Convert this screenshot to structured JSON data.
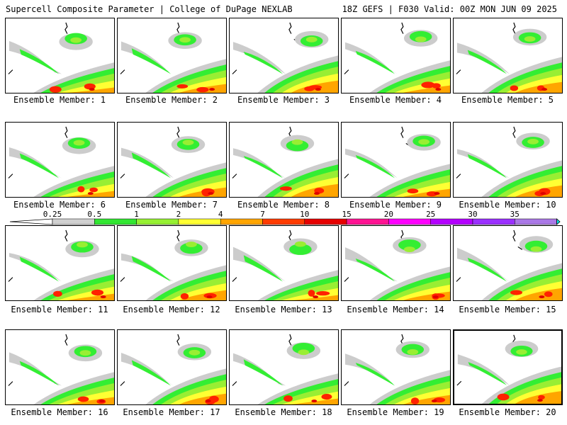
{
  "header": {
    "left_title": "Supercell Composite Parameter | College of DuPage NEXLAB",
    "right_title": "18Z GEFS | F030 Valid: 00Z MON JUN 09 2025"
  },
  "members": [
    {
      "label": "Ensemble Member: 1"
    },
    {
      "label": "Ensemble Member: 2"
    },
    {
      "label": "Ensemble Member: 3"
    },
    {
      "label": "Ensemble Member: 4"
    },
    {
      "label": "Ensemble Member: 5"
    },
    {
      "label": "Ensemble Member: 6"
    },
    {
      "label": "Ensemble Member: 7"
    },
    {
      "label": "Ensemble Member: 8"
    },
    {
      "label": "Ensemble Member: 9"
    },
    {
      "label": "Ensemble Member: 10"
    },
    {
      "label": "Ensemble Member: 11"
    },
    {
      "label": "Ensemble Member: 12"
    },
    {
      "label": "Ensemble Member: 13"
    },
    {
      "label": "Ensemble Member: 14"
    },
    {
      "label": "Ensemble Member: 15"
    },
    {
      "label": "Ensemble Member: 16"
    },
    {
      "label": "Ensemble Member: 17"
    },
    {
      "label": "Ensemble Member: 18"
    },
    {
      "label": "Ensemble Member: 19"
    },
    {
      "label": "Ensemble Member: 20",
      "selected": true
    }
  ],
  "legend": {
    "ticks": [
      "0.25",
      "0.5",
      "1",
      "2",
      "4",
      "7",
      "10",
      "15",
      "20",
      "25",
      "30",
      "35"
    ],
    "colors": [
      "#d0d0d0",
      "#32e632",
      "#96f032",
      "#ffff32",
      "#ffa500",
      "#ff3c00",
      "#e60000",
      "#ff1493",
      "#ff00ff",
      "#b400ff",
      "#9b30ff",
      "#aa78e6",
      "#00e6e6"
    ]
  },
  "field_colors": {
    "gray": "#cccccc",
    "green": "#33ee33",
    "lightgreen": "#99ee33",
    "yellow": "#ffff33",
    "orange": "#ffa500",
    "red": "#ff2200",
    "darkred": "#dd0000"
  }
}
